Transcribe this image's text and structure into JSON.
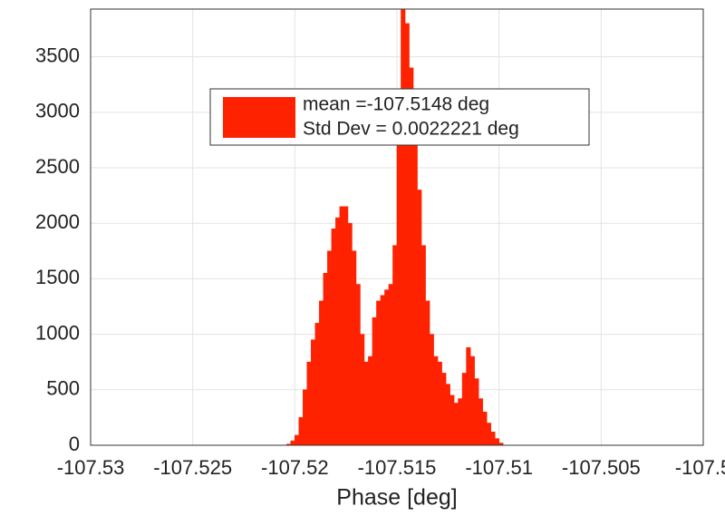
{
  "chart_data": {
    "type": "histogram",
    "xlabel": "Phase [deg]",
    "legend_lines": [
      "mean =-107.5148 deg",
      "Std Dev = 0.0022221 deg"
    ],
    "color": "#ff2200",
    "bins": [
      -107.5206,
      -107.5204,
      -107.5202,
      -107.52,
      -107.5198,
      -107.5196,
      -107.5194,
      -107.5192,
      -107.519,
      -107.5188,
      -107.5186,
      -107.5184,
      -107.5182,
      -107.518,
      -107.5178,
      -107.5176,
      -107.5174,
      -107.5172,
      -107.517,
      -107.5168,
      -107.5166,
      -107.5164,
      -107.5162,
      -107.516,
      -107.5158,
      -107.5156,
      -107.5154,
      -107.5152,
      -107.515,
      -107.5148,
      -107.5146,
      -107.5144,
      -107.5142,
      -107.514,
      -107.5138,
      -107.5136,
      -107.5134,
      -107.5132,
      -107.513,
      -107.5128,
      -107.5126,
      -107.5124,
      -107.5122,
      -107.512,
      -107.5118,
      -107.5116,
      -107.5114,
      -107.5112,
      -107.511,
      -107.5108,
      -107.5106,
      -107.5104,
      -107.5102,
      -107.51,
      -107.5098,
      -107.5096
    ],
    "values": [
      0,
      10,
      40,
      90,
      250,
      500,
      750,
      950,
      1100,
      1300,
      1550,
      1750,
      1950,
      2050,
      2150,
      2150,
      2000,
      1750,
      1450,
      1000,
      750,
      800,
      1150,
      1300,
      1350,
      1400,
      1450,
      1800,
      3000,
      3950,
      3800,
      3400,
      2800,
      2300,
      1800,
      1300,
      1000,
      800,
      750,
      650,
      550,
      450,
      380,
      420,
      650,
      880,
      800,
      600,
      420,
      300,
      200,
      120,
      60,
      20,
      0
    ],
    "xlim": [
      -107.53,
      -107.5
    ],
    "xticks": [
      -107.53,
      -107.525,
      -107.52,
      -107.515,
      -107.51,
      -107.505,
      -107.5
    ],
    "ylim": [
      0,
      3930
    ],
    "yticks": [
      0,
      500,
      1000,
      1500,
      2000,
      2500,
      3000,
      3500
    ],
    "grid": true
  }
}
